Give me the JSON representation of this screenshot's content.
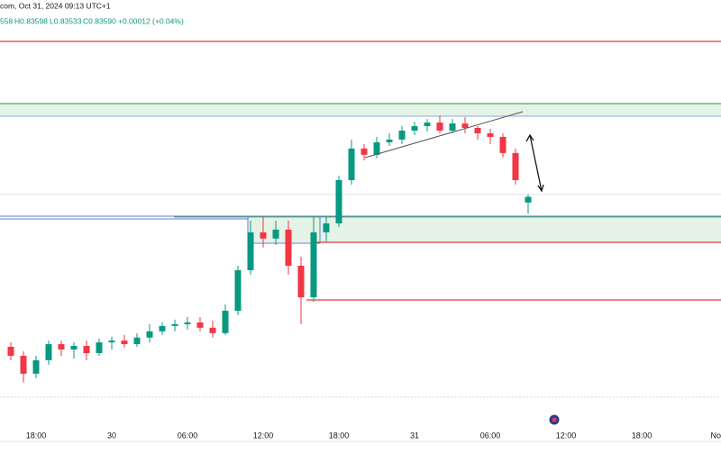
{
  "header": {
    "symbol_info": "com, Oct 31, 2024 09:13 UTC+1",
    "ohlc": [
      "558",
      "H0.83598",
      "L0.83533",
      "C0.83590",
      "+0.00012 (+0.04%)"
    ]
  },
  "chart_data": {
    "type": "candlestick",
    "up_color": "#089981",
    "down_color": "#f23645",
    "ylim": [
      0.8277,
      0.8425
    ],
    "categories": [
      null,
      null,
      "18:00",
      null,
      null,
      null,
      null,
      null,
      "30",
      null,
      null,
      null,
      null,
      null,
      "06:00",
      null,
      null,
      null,
      null,
      null,
      "12:00",
      null,
      null,
      null,
      null,
      null,
      "18:00",
      null,
      null,
      null,
      null,
      null,
      "31",
      null,
      null,
      null,
      null,
      null,
      "06:00",
      null,
      null,
      null,
      null,
      null,
      "12:00",
      null,
      null,
      null,
      null,
      null,
      "18:00",
      null,
      null,
      null,
      null,
      null,
      "No"
    ],
    "open": [
      0.83087,
      0.83057,
      0.82997,
      0.83042,
      0.83096,
      0.83078,
      0.8309,
      0.83066,
      0.83102,
      0.83108,
      0.83096,
      0.83118,
      0.83139,
      0.83157,
      0.83163,
      0.83169,
      0.83151,
      0.83133,
      0.83208,
      0.83344,
      0.83471,
      0.8345,
      0.8348,
      0.83359,
      0.83253,
      0.83471,
      0.83501,
      0.83646,
      0.83752,
      0.83731,
      0.83773,
      0.83782,
      0.83812,
      0.83827,
      0.83839,
      0.83812,
      0.83836,
      0.83821,
      0.83803,
      0.83791,
      0.83737,
      0.83571,
      null,
      null,
      null,
      null,
      null,
      null,
      null,
      null,
      null,
      null,
      null,
      null,
      null,
      null,
      null
    ],
    "high": [
      0.83102,
      0.83072,
      0.83057,
      0.83108,
      0.83108,
      0.83102,
      0.83108,
      0.83115,
      0.83121,
      0.83127,
      0.83133,
      0.83163,
      0.83169,
      0.83178,
      0.83187,
      0.83187,
      0.83175,
      0.83229,
      0.83359,
      0.8351,
      0.83525,
      0.8351,
      0.8351,
      0.83389,
      0.83525,
      0.83525,
      0.83661,
      0.83782,
      0.83767,
      0.83791,
      0.83803,
      0.83827,
      0.83842,
      0.83851,
      0.83863,
      0.83851,
      0.83857,
      0.83827,
      0.83818,
      0.83803,
      0.83752,
      0.83598,
      null,
      null,
      null,
      null,
      null,
      null,
      null,
      null,
      null,
      null,
      null,
      null,
      null,
      null,
      null
    ],
    "low": [
      0.83042,
      0.82967,
      0.82982,
      0.83027,
      0.83057,
      0.83048,
      0.83042,
      0.83057,
      0.83078,
      0.83084,
      0.83087,
      0.83102,
      0.83127,
      0.83139,
      0.83145,
      0.83139,
      0.83118,
      0.83127,
      0.83193,
      0.83329,
      0.8342,
      0.83429,
      0.83329,
      0.83163,
      0.83238,
      0.83441,
      0.83489,
      0.83631,
      0.83712,
      0.83719,
      0.83761,
      0.83767,
      0.83797,
      0.83809,
      0.83803,
      0.83803,
      0.83803,
      0.83782,
      0.83767,
      0.83722,
      0.83631,
      0.83533,
      null,
      null,
      null,
      null,
      null,
      null,
      null,
      null,
      null,
      null,
      null,
      null,
      null,
      null,
      null
    ],
    "close": [
      0.83057,
      0.82997,
      0.83042,
      0.83096,
      0.83078,
      0.8309,
      0.83066,
      0.83102,
      0.83108,
      0.83096,
      0.83118,
      0.83139,
      0.83157,
      0.83163,
      0.83169,
      0.83151,
      0.83133,
      0.83208,
      0.83344,
      0.83471,
      0.8345,
      0.8348,
      0.83359,
      0.83253,
      0.83471,
      0.83501,
      0.83646,
      0.83752,
      0.83731,
      0.83773,
      0.83782,
      0.83812,
      0.83827,
      0.83839,
      0.83812,
      0.83836,
      0.83821,
      0.83803,
      0.83791,
      0.83737,
      0.83646,
      0.8359,
      null,
      null,
      null,
      null,
      null,
      null,
      null,
      null,
      null,
      null,
      null,
      null,
      null,
      null,
      null
    ]
  }
}
